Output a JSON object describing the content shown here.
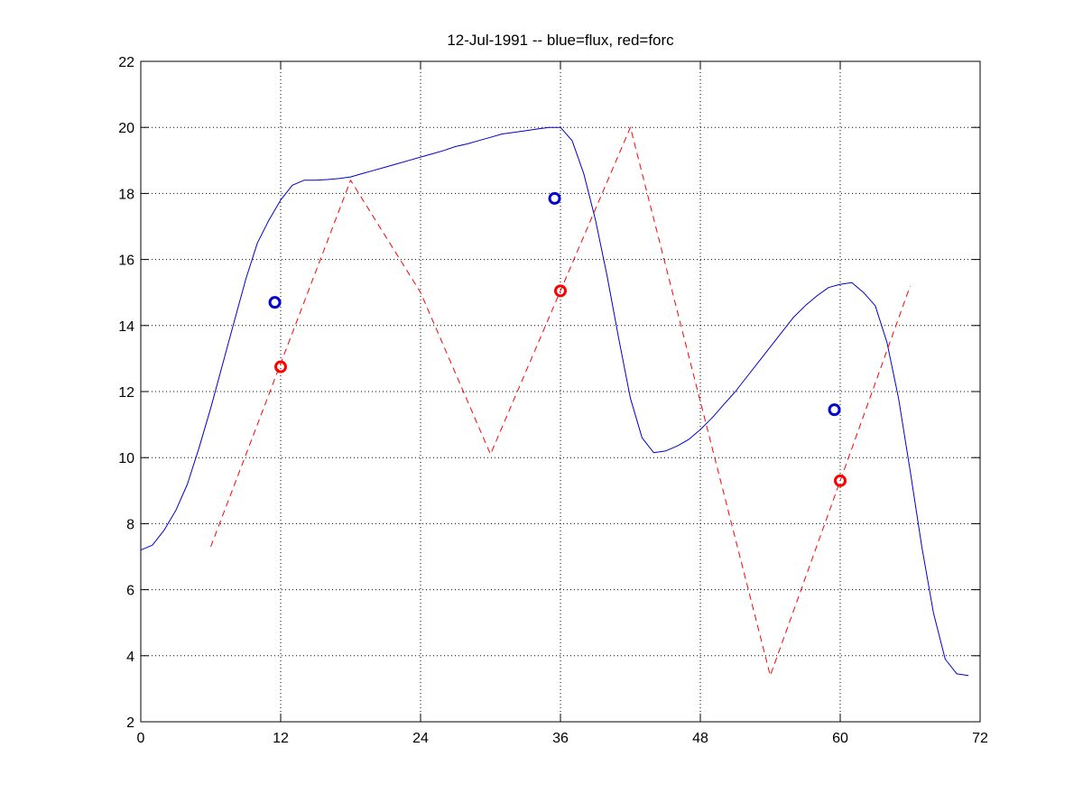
{
  "chart_data": {
    "type": "line",
    "title": "12-Jul-1991 -- blue=flux, red=forc",
    "xlabel": "",
    "ylabel": "",
    "xlim": [
      0,
      72
    ],
    "ylim": [
      2,
      22
    ],
    "xticks": [
      "0",
      "12",
      "24",
      "36",
      "48",
      "60",
      "72"
    ],
    "yticks": [
      "2",
      "4",
      "6",
      "8",
      "10",
      "12",
      "14",
      "16",
      "18",
      "20",
      "22"
    ],
    "grid": true,
    "colors": {
      "flux": "#0000cc",
      "forc": "#ff0000",
      "axis": "#000000",
      "grid": "#000000"
    },
    "series": [
      {
        "style": "solid-line",
        "color": "#0000cc",
        "x": [
          0,
          1,
          2,
          3,
          4,
          5,
          6,
          7,
          8,
          9,
          10,
          11,
          12,
          13,
          14,
          15,
          16,
          17,
          18,
          19,
          20,
          21,
          22,
          23,
          24,
          25,
          26,
          27,
          28,
          29,
          30,
          31,
          32,
          33,
          34,
          35,
          36,
          37,
          38,
          39,
          40,
          41,
          42,
          43,
          44,
          45,
          46,
          47,
          48,
          49,
          50,
          51,
          52,
          53,
          54,
          55,
          56,
          57,
          58,
          59,
          60,
          61,
          62,
          63,
          64,
          65,
          66,
          67,
          68,
          69,
          70,
          71
        ],
        "y": [
          7.2,
          7.35,
          7.8,
          8.4,
          9.2,
          10.3,
          11.5,
          12.8,
          14.1,
          15.4,
          16.5,
          17.2,
          17.8,
          18.25,
          18.4,
          18.4,
          18.42,
          18.45,
          18.5,
          18.6,
          18.7,
          18.8,
          18.9,
          19.0,
          19.1,
          19.2,
          19.3,
          19.42,
          19.5,
          19.6,
          19.7,
          19.8,
          19.85,
          19.9,
          19.95,
          20.0,
          20.0,
          19.6,
          18.6,
          17.2,
          15.5,
          13.6,
          11.8,
          10.6,
          10.15,
          10.2,
          10.35,
          10.55,
          10.85,
          11.2,
          11.6,
          12.0,
          12.45,
          12.9,
          13.35,
          13.8,
          14.25,
          14.6,
          14.9,
          15.15,
          15.25,
          15.3,
          15.0,
          14.6,
          13.5,
          11.8,
          9.6,
          7.3,
          5.3,
          3.9,
          3.45,
          3.4
        ]
      },
      {
        "style": "dashed-line",
        "color": "#ff0000",
        "x": [
          6,
          18,
          24,
          30,
          42,
          48,
          54,
          66
        ],
        "y": [
          7.3,
          18.4,
          15.0,
          10.1,
          20.0,
          11.7,
          3.4,
          15.2
        ]
      },
      {
        "style": "circle-markers",
        "color": "#0000cc",
        "x": [
          11.5,
          35.5,
          59.5
        ],
        "y": [
          14.7,
          17.85,
          11.45
        ]
      },
      {
        "style": "circle-markers",
        "color": "#ff0000",
        "x": [
          12,
          36,
          60
        ],
        "y": [
          12.75,
          15.05,
          9.3
        ]
      }
    ]
  }
}
